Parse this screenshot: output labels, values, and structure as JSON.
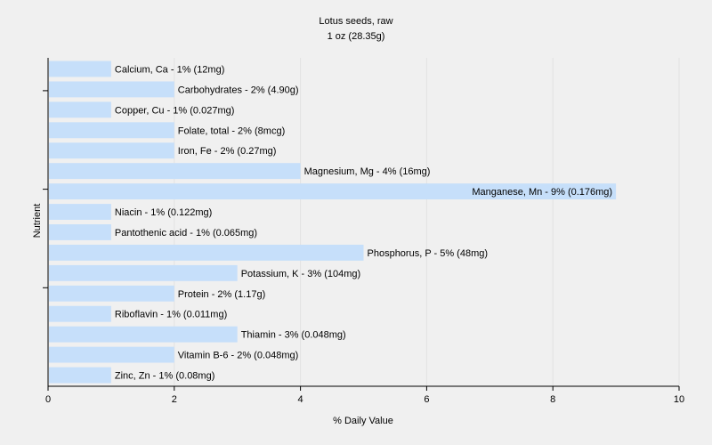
{
  "chart_data": {
    "type": "bar",
    "orientation": "horizontal",
    "title": "Lotus seeds, raw",
    "subtitle": "1 oz (28.35g)",
    "xlabel": "% Daily Value",
    "ylabel": "Nutrient",
    "xlim": [
      0,
      10
    ],
    "xticks": [
      "0",
      "2",
      "4",
      "6",
      "8",
      "10"
    ],
    "grid": true,
    "bar_color": "#c6dffa",
    "grid_color": "#e2e2e2",
    "categories": [
      "Calcium, Ca",
      "Carbohydrates",
      "Copper, Cu",
      "Folate, total",
      "Iron, Fe",
      "Magnesium, Mg",
      "Manganese, Mn",
      "Niacin",
      "Pantothenic acid",
      "Phosphorus, P",
      "Potassium, K",
      "Protein",
      "Riboflavin",
      "Thiamin",
      "Vitamin B-6",
      "Zinc, Zn"
    ],
    "values": [
      1,
      2,
      1,
      2,
      2,
      4,
      9,
      1,
      1,
      5,
      3,
      2,
      1,
      3,
      2,
      1
    ],
    "labels": [
      "Calcium, Ca - 1% (12mg)",
      "Carbohydrates - 2% (4.90g)",
      "Copper, Cu - 1% (0.027mg)",
      "Folate, total - 2% (8mcg)",
      "Iron, Fe - 2% (0.27mg)",
      "Magnesium, Mg - 4% (16mg)",
      "Manganese, Mn - 9% (0.176mg)",
      "Niacin - 1% (0.122mg)",
      "Pantothenic acid - 1% (0.065mg)",
      "Phosphorus, P - 5% (48mg)",
      "Potassium, K - 3% (104mg)",
      "Protein - 2% (1.17g)",
      "Riboflavin - 1% (0.011mg)",
      "Thiamin - 3% (0.048mg)",
      "Vitamin B-6 - 2% (0.048mg)",
      "Zinc, Zn - 1% (0.08mg)"
    ]
  }
}
